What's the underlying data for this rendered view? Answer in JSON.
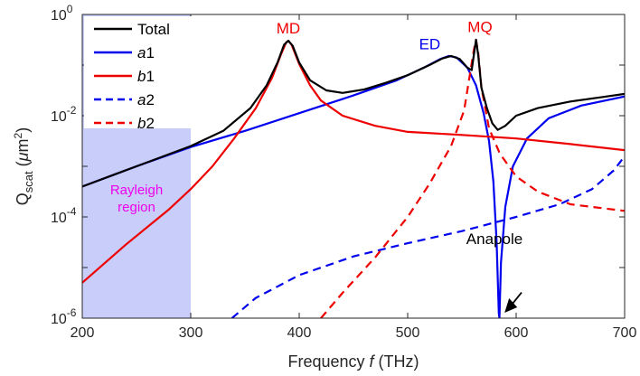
{
  "chart_data": {
    "type": "line",
    "xlabel": {
      "main": "Frequency ",
      "italic": "f",
      "unit": " (THz)"
    },
    "ylabel": {
      "main": "Q",
      "sub": "scat",
      "open": " (",
      "italic": "μ",
      "unit": "m",
      "sup": "2",
      "close": ")"
    },
    "xlim": [
      200,
      700
    ],
    "ylim_log10": [
      -6,
      0
    ],
    "x_ticks": [
      200,
      300,
      400,
      500,
      600,
      700
    ],
    "y_ticks": [
      {
        "base": "10",
        "exp": "0",
        "log10": 0
      },
      {
        "base": "10",
        "exp": "-2",
        "log10": -2
      },
      {
        "base": "10",
        "exp": "-4",
        "log10": -4
      },
      {
        "base": "10",
        "exp": "-6",
        "log10": -6
      }
    ],
    "series": [
      {
        "name": "Total",
        "legend_label": "Total",
        "italic": false,
        "color": "#000000",
        "dash": false,
        "points": [
          [
            200,
            -3.4
          ],
          [
            250,
            -3.0
          ],
          [
            300,
            -2.6
          ],
          [
            330,
            -2.3
          ],
          [
            355,
            -1.85
          ],
          [
            370,
            -1.4
          ],
          [
            380,
            -0.95
          ],
          [
            386,
            -0.6
          ],
          [
            390,
            -0.52
          ],
          [
            394,
            -0.62
          ],
          [
            400,
            -0.95
          ],
          [
            410,
            -1.3
          ],
          [
            425,
            -1.5
          ],
          [
            440,
            -1.55
          ],
          [
            460,
            -1.48
          ],
          [
            480,
            -1.35
          ],
          [
            500,
            -1.2
          ],
          [
            520,
            -1.0
          ],
          [
            532,
            -0.87
          ],
          [
            540,
            -0.82
          ],
          [
            548,
            -0.88
          ],
          [
            555,
            -1.05
          ],
          [
            559,
            -1.1
          ],
          [
            561,
            -0.8
          ],
          [
            563,
            -0.5
          ],
          [
            565,
            -0.8
          ],
          [
            568,
            -1.45
          ],
          [
            573,
            -1.85
          ],
          [
            578,
            -2.15
          ],
          [
            583,
            -2.28
          ],
          [
            590,
            -2.2
          ],
          [
            600,
            -2.0
          ],
          [
            620,
            -1.85
          ],
          [
            650,
            -1.72
          ],
          [
            680,
            -1.63
          ],
          [
            700,
            -1.57
          ]
        ]
      },
      {
        "name": "a1",
        "legend_label": "a",
        "legend_sub": "1",
        "italic": true,
        "color": "#0000ee",
        "dash": false,
        "points": [
          [
            200,
            -3.4
          ],
          [
            250,
            -3.0
          ],
          [
            300,
            -2.62
          ],
          [
            350,
            -2.3
          ],
          [
            400,
            -1.95
          ],
          [
            450,
            -1.6
          ],
          [
            490,
            -1.3
          ],
          [
            515,
            -1.05
          ],
          [
            530,
            -0.88
          ],
          [
            538,
            -0.82
          ],
          [
            545,
            -0.85
          ],
          [
            555,
            -1.05
          ],
          [
            563,
            -1.4
          ],
          [
            570,
            -1.95
          ],
          [
            575,
            -2.5
          ],
          [
            579,
            -3.3
          ],
          [
            582,
            -4.5
          ],
          [
            584,
            -5.9
          ],
          [
            584.6,
            -6.0
          ],
          [
            586,
            -4.9
          ],
          [
            590,
            -3.8
          ],
          [
            597,
            -3.0
          ],
          [
            610,
            -2.45
          ],
          [
            630,
            -2.05
          ],
          [
            660,
            -1.8
          ],
          [
            700,
            -1.62
          ]
        ]
      },
      {
        "name": "b1",
        "legend_label": "b",
        "legend_sub": "1",
        "italic": true,
        "color": "#ee0000",
        "dash": false,
        "points": [
          [
            200,
            -5.3
          ],
          [
            240,
            -4.55
          ],
          [
            280,
            -3.85
          ],
          [
            300,
            -3.45
          ],
          [
            320,
            -3.0
          ],
          [
            340,
            -2.45
          ],
          [
            360,
            -1.85
          ],
          [
            375,
            -1.25
          ],
          [
            383,
            -0.8
          ],
          [
            388,
            -0.55
          ],
          [
            390,
            -0.52
          ],
          [
            393,
            -0.6
          ],
          [
            400,
            -0.98
          ],
          [
            410,
            -1.4
          ],
          [
            420,
            -1.7
          ],
          [
            440,
            -2.0
          ],
          [
            470,
            -2.2
          ],
          [
            500,
            -2.32
          ],
          [
            550,
            -2.38
          ],
          [
            600,
            -2.45
          ],
          [
            650,
            -2.56
          ],
          [
            700,
            -2.68
          ]
        ]
      },
      {
        "name": "a2",
        "legend_label": "a",
        "legend_sub": "2",
        "italic": true,
        "color": "#0000ee",
        "dash": true,
        "points": [
          [
            338,
            -6.0
          ],
          [
            360,
            -5.6
          ],
          [
            400,
            -5.15
          ],
          [
            450,
            -4.78
          ],
          [
            500,
            -4.52
          ],
          [
            550,
            -4.28
          ],
          [
            600,
            -4.0
          ],
          [
            640,
            -3.75
          ],
          [
            670,
            -3.45
          ],
          [
            690,
            -3.08
          ],
          [
            700,
            -2.8
          ]
        ]
      },
      {
        "name": "b2",
        "legend_label": "b",
        "legend_sub": "2",
        "italic": true,
        "color": "#ee0000",
        "dash": true,
        "points": [
          [
            420,
            -6.0
          ],
          [
            440,
            -5.5
          ],
          [
            470,
            -4.8
          ],
          [
            500,
            -4.0
          ],
          [
            520,
            -3.35
          ],
          [
            540,
            -2.6
          ],
          [
            552,
            -1.9
          ],
          [
            558,
            -1.1
          ],
          [
            561,
            -0.7
          ],
          [
            563,
            -0.5
          ],
          [
            565,
            -0.75
          ],
          [
            568,
            -1.45
          ],
          [
            575,
            -2.25
          ],
          [
            585,
            -2.75
          ],
          [
            600,
            -3.2
          ],
          [
            620,
            -3.5
          ],
          [
            650,
            -3.75
          ],
          [
            700,
            -3.88
          ]
        ]
      }
    ],
    "shaded_region": {
      "x_range": [
        200,
        300
      ],
      "color": "#c8cdfa",
      "label_line1": "Rayleigh",
      "label_line2": "region",
      "label_color": "#ee00ee"
    },
    "annotations": [
      {
        "text": "MD",
        "color": "#ee0000",
        "x": 390,
        "y_log10": -0.55
      },
      {
        "text": "ED",
        "color": "#0000ee",
        "x": 532,
        "y_log10": -0.83
      },
      {
        "text": "MQ",
        "color": "#ee0000",
        "x": 565,
        "y_log10": -0.53
      },
      {
        "text": "Anapole",
        "color": "#000000",
        "x": 600,
        "y_log10": -5.25
      }
    ],
    "legend_position": "top-left",
    "grid": false
  }
}
